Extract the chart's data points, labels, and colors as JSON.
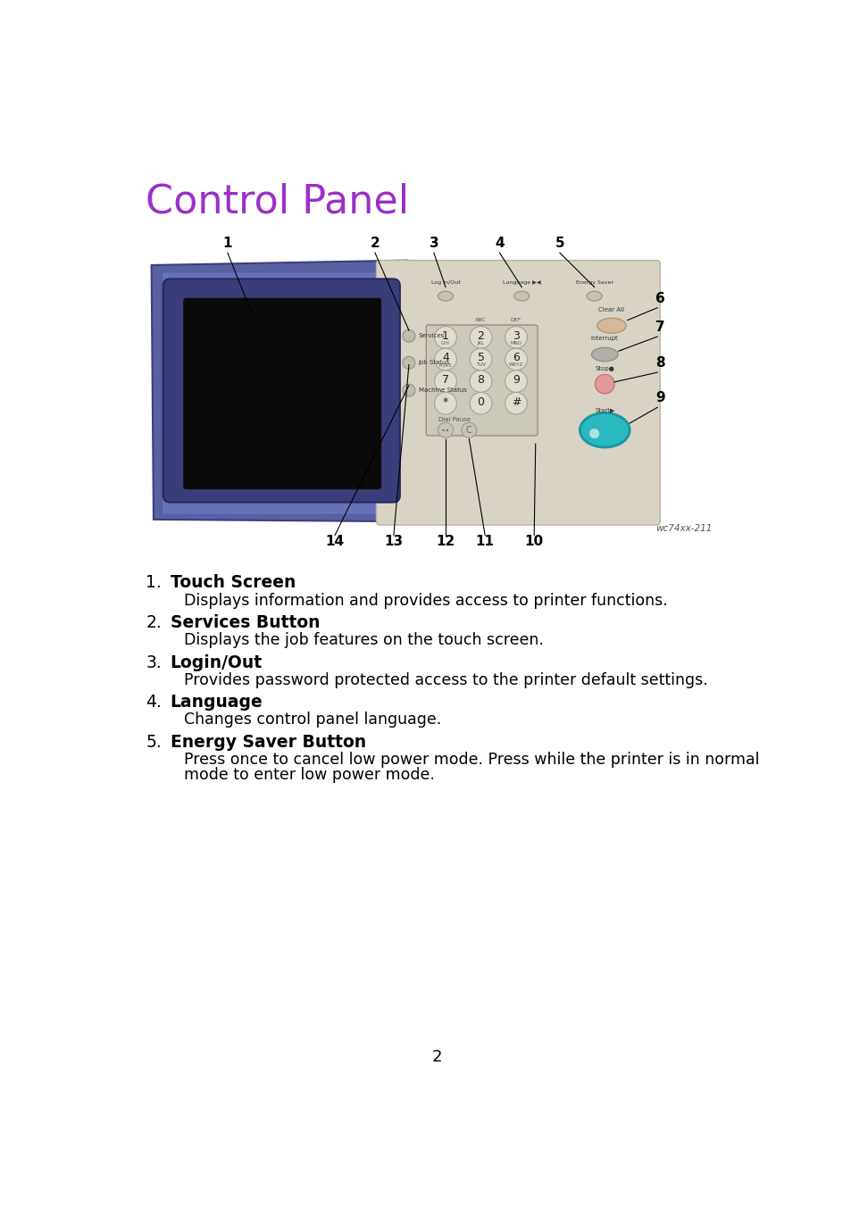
{
  "title": "Control Panel",
  "title_color": "#9B30C8",
  "title_fontsize": 32,
  "background_color": "#ffffff",
  "image_caption": "wc74xx-211",
  "page_number": "2",
  "items": [
    {
      "number": "1.",
      "bold_text": "Touch Screen",
      "body_text": "Displays information and provides access to printer functions."
    },
    {
      "number": "2.",
      "bold_text": "Services Button",
      "body_text": "Displays the job features on the touch screen."
    },
    {
      "number": "3.",
      "bold_text": "Login/Out",
      "body_text": "Provides password protected access to the printer default settings."
    },
    {
      "number": "4.",
      "bold_text": "Language",
      "body_text": "Changes control panel language."
    },
    {
      "number": "5.",
      "bold_text": "Energy Saver Button",
      "body_text": "Press once to cancel low power mode. Press while the printer is in normal\nmode to enter low power mode."
    }
  ]
}
